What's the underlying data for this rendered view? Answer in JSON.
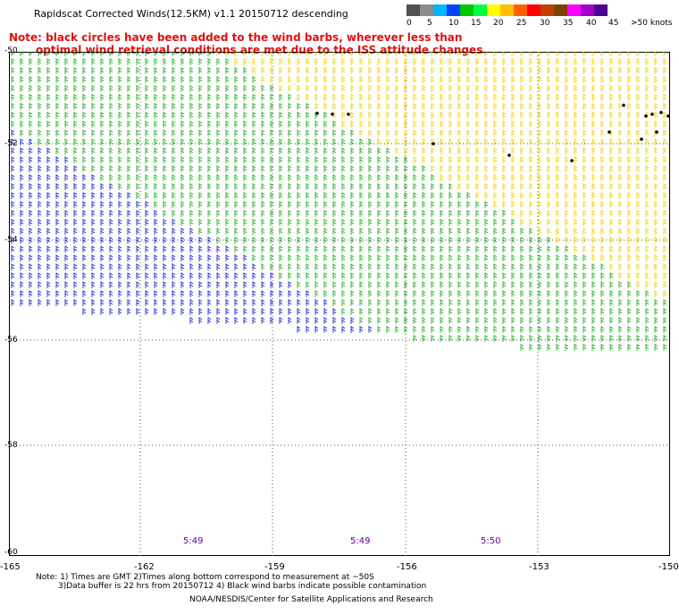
{
  "header": {
    "title": "Rapidscat Corrected Winds(12.5KM) v1.1 20150712 descending",
    "note_line1": "Note: black circles have been added to the wind barbs, wherever less than",
    "note_line2": "optimal wind retrieval conditions are met due to the ISS attitude changes."
  },
  "colorbar": {
    "colors": [
      "#505050",
      "#8c8c8c",
      "#00b4ff",
      "#0044ff",
      "#00c800",
      "#00ff40",
      "#ffff00",
      "#ffc000",
      "#ff6000",
      "#ff0000",
      "#c04000",
      "#804000",
      "#ff00ff",
      "#a000c8",
      "#500090"
    ],
    "labels": [
      "0",
      "5",
      "10",
      "15",
      "20",
      "25",
      "30",
      "35",
      "40",
      "45",
      ">50 knots"
    ]
  },
  "axes": {
    "lat_labels": [
      "-50",
      "-52",
      "-54",
      "-56",
      "-58",
      "-60"
    ],
    "lon_labels": [
      "-165",
      "-162",
      "-159",
      "-156",
      "-153",
      "-150"
    ]
  },
  "times": [
    "5:49",
    "5:49",
    "5:50"
  ],
  "wind_colors": {
    "yellow": "#f2d200",
    "green": "#22b022",
    "blue": "#1c28d8",
    "black": "#000000"
  },
  "footer": {
    "line1": "Note: 1) Times are GMT 2)Times along bottom correspond to measurement at ~50S",
    "line2": "3)Data buffer is 22 hrs from 20150712 4) Black wind barbs indicate possible contamination",
    "credit": "NOAA/NESDIS/Center for Satellite Applications and Research"
  }
}
